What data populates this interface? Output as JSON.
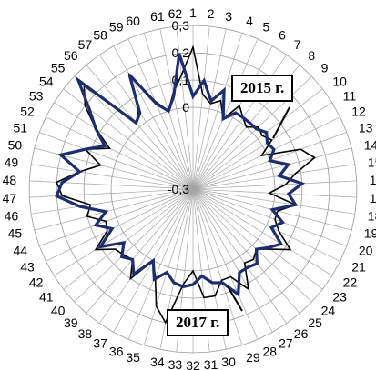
{
  "chart_data": {
    "type": "radar",
    "categories": [
      "1",
      "2",
      "3",
      "4",
      "5",
      "6",
      "7",
      "8",
      "9",
      "10",
      "11",
      "12",
      "13",
      "14",
      "15",
      "16",
      "17",
      "18",
      "19",
      "20",
      "21",
      "22",
      "23",
      "24",
      "25",
      "26",
      "27",
      "28",
      "29",
      "30",
      "31",
      "32",
      "33",
      "34",
      "35",
      "36",
      "37",
      "38",
      "39",
      "40",
      "41",
      "42",
      "43",
      "44",
      "45",
      "46",
      "47",
      "48",
      "49",
      "50",
      "51",
      "52",
      "53",
      "54",
      "55",
      "56",
      "57",
      "58",
      "59",
      "60",
      "61",
      "62"
    ],
    "rlim": [
      -0.3,
      0.3
    ],
    "ticks": [
      -0.3,
      0,
      0.1,
      0.2,
      0.3
    ],
    "tick_labels": [
      "-0,3",
      "0",
      "0,1",
      "0,2",
      "0,3"
    ],
    "grid": true,
    "series": [
      {
        "name": "2015 г.",
        "color": "#000000",
        "values": [
          0.22,
          0.05,
          0.02,
          0.04,
          -0.02,
          0.05,
          0.02,
          0.0,
          0.03,
          0.02,
          0.04,
          -0.02,
          0.12,
          0.16,
          0.08,
          0.04,
          -0.02,
          0.08,
          0.02,
          0.02,
          0.05,
          0.12,
          0.06,
          0.02,
          0.04,
          0.03,
          0.12,
          0.05,
          0.05,
          0.1,
          0.1,
          0.0,
          0.05,
          0.2,
          0.15,
          0.05,
          0.0,
          0.1,
          0.04,
          0.05,
          0.06,
          0.12,
          0.05,
          0.04,
          0.1,
          0.08,
          0.18,
          0.2,
          0.12,
          0.05,
          0.12,
          0.04,
          0.12,
          0.2,
          0.25,
          0.02,
          0.05,
          0.18,
          0.05,
          0.0,
          0.06,
          0.12
        ]
      },
      {
        "name": "2017 г.",
        "color": "#1c2e6e",
        "values": [
          0.04,
          0.1,
          0.03,
          0.08,
          -0.02,
          0.02,
          0.02,
          0.02,
          0.02,
          0.04,
          0.02,
          0.03,
          0.0,
          0.06,
          0.02,
          0.1,
          0.05,
          0.08,
          0.0,
          0.05,
          0.02,
          0.08,
          0.05,
          0.02,
          0.06,
          0.05,
          0.05,
          0.12,
          0.06,
          0.05,
          0.02,
          0.05,
          0.06,
          0.05,
          0.02,
          0.06,
          0.0,
          0.08,
          0.04,
          0.06,
          0.02,
          0.1,
          0.03,
          0.08,
          0.03,
          0.12,
          0.2,
          0.18,
          0.12,
          0.2,
          0.12,
          0.06,
          0.12,
          0.18,
          0.28,
          0.02,
          0.04,
          0.18,
          0.04,
          0.0,
          0.05,
          0.2
        ]
      }
    ],
    "annotations": [
      "2015 г.",
      "2017 г."
    ]
  }
}
